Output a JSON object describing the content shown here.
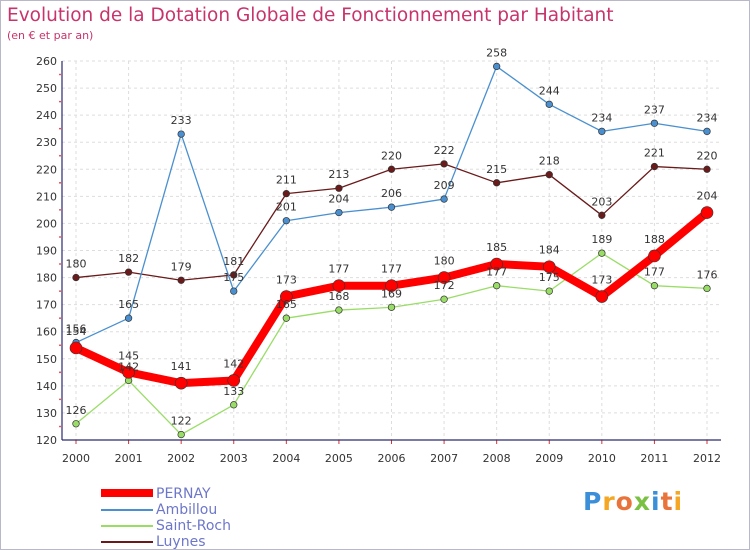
{
  "chart_data": {
    "type": "line",
    "title": "Evolution de la Dotation Globale de Fonctionnement par Habitant",
    "subtitle": "(en € et par an)",
    "xlabel": "",
    "ylabel": "",
    "categories": [
      "2000",
      "2001",
      "2002",
      "2003",
      "2004",
      "2005",
      "2006",
      "2007",
      "2008",
      "2009",
      "2010",
      "2011",
      "2012"
    ],
    "ylim": [
      120,
      260
    ],
    "yticks": [
      120,
      130,
      140,
      150,
      160,
      170,
      180,
      190,
      200,
      210,
      220,
      230,
      240,
      250,
      260
    ],
    "grid": true,
    "legend_position": "bottom-left",
    "series": [
      {
        "name": "Luynes",
        "color": "#6a1a1a",
        "values": [
          180,
          182,
          179,
          181,
          211,
          213,
          220,
          222,
          215,
          218,
          203,
          221,
          220
        ]
      },
      {
        "name": "Saint-Roch",
        "color": "#99dd66",
        "values": [
          126,
          142,
          122,
          133,
          165,
          168,
          169,
          172,
          177,
          175,
          189,
          177,
          176
        ]
      },
      {
        "name": "Ambillou",
        "color": "#4a90d0",
        "values": [
          156,
          165,
          233,
          175,
          201,
          204,
          206,
          209,
          258,
          244,
          234,
          237,
          234
        ]
      },
      {
        "name": "PERNAY",
        "color": "#ff0000",
        "values": [
          154,
          145,
          141,
          142,
          173,
          177,
          177,
          180,
          185,
          184,
          173,
          188,
          204
        ]
      }
    ]
  },
  "legend": {
    "items": [
      {
        "label": "PERNAY",
        "color": "#ff0000"
      },
      {
        "label": "Ambillou",
        "color": "#4a90d0"
      },
      {
        "label": "Saint-Roch",
        "color": "#99dd66"
      },
      {
        "label": "Luynes",
        "color": "#6a1a1a"
      }
    ]
  },
  "brand": {
    "letters": [
      {
        "char": "P",
        "color": "#3a8fd8"
      },
      {
        "char": "r",
        "color": "#f5a623"
      },
      {
        "char": "o",
        "color": "#e8743b"
      },
      {
        "char": "x",
        "color": "#7ac143"
      },
      {
        "char": "i",
        "color": "#3a8fd8"
      },
      {
        "char": "t",
        "color": "#e8743b"
      },
      {
        "char": "i",
        "color": "#f5a623"
      }
    ]
  }
}
